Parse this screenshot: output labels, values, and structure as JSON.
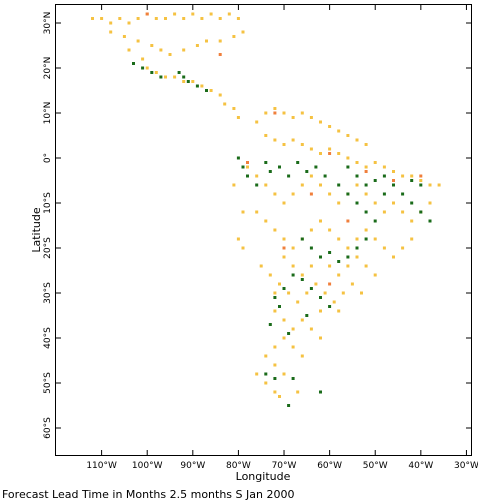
{
  "chart_data": {
    "type": "scatter",
    "caption": "Forecast Lead Time in Months 2.5 months S Jan 2000",
    "xlabel": "Longitude",
    "ylabel": "Latitude",
    "xlim": [
      -120,
      -29
    ],
    "ylim": [
      -66,
      34
    ],
    "x_ticks": [
      {
        "value": -110,
        "label": "110°W"
      },
      {
        "value": -100,
        "label": "100°W"
      },
      {
        "value": -90,
        "label": "90°W"
      },
      {
        "value": -80,
        "label": "80°W"
      },
      {
        "value": -70,
        "label": "70°W"
      },
      {
        "value": -60,
        "label": "60°W"
      },
      {
        "value": -50,
        "label": "50°W"
      },
      {
        "value": -40,
        "label": "40°W"
      },
      {
        "value": -30,
        "label": "30°W"
      }
    ],
    "y_ticks": [
      {
        "value": 30,
        "label": "30°N"
      },
      {
        "value": 20,
        "label": "20°N"
      },
      {
        "value": 10,
        "label": "10°N"
      },
      {
        "value": 0,
        "label": "0°"
      },
      {
        "value": -10,
        "label": "10°S"
      },
      {
        "value": -20,
        "label": "20°S"
      },
      {
        "value": -30,
        "label": "30°S"
      },
      {
        "value": -40,
        "label": "40°S"
      },
      {
        "value": -50,
        "label": "50°S"
      },
      {
        "value": -60,
        "label": "60°S"
      }
    ],
    "series": [
      {
        "color": "#f5c242",
        "points": [
          [
            -112,
            31
          ],
          [
            -110,
            31
          ],
          [
            -108,
            30
          ],
          [
            -106,
            31
          ],
          [
            -104,
            30
          ],
          [
            -102,
            31
          ],
          [
            -100,
            32
          ],
          [
            -98,
            31
          ],
          [
            -96,
            31
          ],
          [
            -94,
            32
          ],
          [
            -92,
            31
          ],
          [
            -90,
            32
          ],
          [
            -88,
            31
          ],
          [
            -86,
            32
          ],
          [
            -84,
            31
          ],
          [
            -82,
            32
          ],
          [
            -80,
            31
          ],
          [
            -108,
            28
          ],
          [
            -105,
            27
          ],
          [
            -102,
            26
          ],
          [
            -99,
            25
          ],
          [
            -97,
            24
          ],
          [
            -95,
            23
          ],
          [
            -92,
            24
          ],
          [
            -89,
            25
          ],
          [
            -87,
            26
          ],
          [
            -84,
            26
          ],
          [
            -81,
            27
          ],
          [
            -79,
            28
          ],
          [
            -104,
            24
          ],
          [
            -101,
            22
          ],
          [
            -100,
            20
          ],
          [
            -98,
            19
          ],
          [
            -96,
            18
          ],
          [
            -94,
            18
          ],
          [
            -92,
            17
          ],
          [
            -90,
            17
          ],
          [
            -88,
            16
          ],
          [
            -86,
            15
          ],
          [
            -84,
            14
          ],
          [
            -83,
            12
          ],
          [
            -81,
            11
          ],
          [
            -80,
            9
          ],
          [
            -76,
            8
          ],
          [
            -74,
            10
          ],
          [
            -72,
            11
          ],
          [
            -70,
            10
          ],
          [
            -68,
            9
          ],
          [
            -66,
            10
          ],
          [
            -64,
            9
          ],
          [
            -62,
            8
          ],
          [
            -60,
            7
          ],
          [
            -58,
            6
          ],
          [
            -56,
            5
          ],
          [
            -54,
            4
          ],
          [
            -52,
            3
          ],
          [
            -74,
            5
          ],
          [
            -72,
            4
          ],
          [
            -70,
            3
          ],
          [
            -68,
            4
          ],
          [
            -66,
            3
          ],
          [
            -64,
            2
          ],
          [
            -62,
            1
          ],
          [
            -60,
            2
          ],
          [
            -58,
            1
          ],
          [
            -56,
            0
          ],
          [
            -54,
            -1
          ],
          [
            -52,
            -2
          ],
          [
            -50,
            -1
          ],
          [
            -48,
            -2
          ],
          [
            -46,
            -3
          ],
          [
            -44,
            -4
          ],
          [
            -42,
            -4
          ],
          [
            -40,
            -5
          ],
          [
            -38,
            -6
          ],
          [
            -36,
            -6
          ],
          [
            -78,
            -2
          ],
          [
            -76,
            -4
          ],
          [
            -74,
            -6
          ],
          [
            -72,
            -8
          ],
          [
            -70,
            -10
          ],
          [
            -68,
            -8
          ],
          [
            -66,
            -6
          ],
          [
            -64,
            -4
          ],
          [
            -62,
            -6
          ],
          [
            -60,
            -8
          ],
          [
            -58,
            -10
          ],
          [
            -56,
            -8
          ],
          [
            -54,
            -6
          ],
          [
            -52,
            -8
          ],
          [
            -50,
            -10
          ],
          [
            -48,
            -12
          ],
          [
            -46,
            -10
          ],
          [
            -44,
            -12
          ],
          [
            -42,
            -14
          ],
          [
            -40,
            -12
          ],
          [
            -38,
            -10
          ],
          [
            -76,
            -12
          ],
          [
            -74,
            -14
          ],
          [
            -72,
            -16
          ],
          [
            -70,
            -18
          ],
          [
            -68,
            -20
          ],
          [
            -66,
            -18
          ],
          [
            -64,
            -16
          ],
          [
            -62,
            -14
          ],
          [
            -60,
            -16
          ],
          [
            -58,
            -18
          ],
          [
            -56,
            -20
          ],
          [
            -54,
            -18
          ],
          [
            -52,
            -16
          ],
          [
            -50,
            -18
          ],
          [
            -48,
            -20
          ],
          [
            -46,
            -22
          ],
          [
            -44,
            -20
          ],
          [
            -42,
            -18
          ],
          [
            -70,
            -22
          ],
          [
            -68,
            -24
          ],
          [
            -66,
            -26
          ],
          [
            -64,
            -24
          ],
          [
            -62,
            -22
          ],
          [
            -60,
            -24
          ],
          [
            -58,
            -26
          ],
          [
            -56,
            -24
          ],
          [
            -54,
            -22
          ],
          [
            -52,
            -24
          ],
          [
            -50,
            -26
          ],
          [
            -71,
            -28
          ],
          [
            -69,
            -30
          ],
          [
            -67,
            -32
          ],
          [
            -65,
            -30
          ],
          [
            -63,
            -28
          ],
          [
            -61,
            -30
          ],
          [
            -59,
            -32
          ],
          [
            -57,
            -30
          ],
          [
            -55,
            -28
          ],
          [
            -53,
            -30
          ],
          [
            -58,
            -34
          ],
          [
            -62,
            -34
          ],
          [
            -72,
            -34
          ],
          [
            -70,
            -36
          ],
          [
            -68,
            -38
          ],
          [
            -66,
            -36
          ],
          [
            -64,
            -38
          ],
          [
            -62,
            -40
          ],
          [
            -70,
            -40
          ],
          [
            -72,
            -42
          ],
          [
            -68,
            -42
          ],
          [
            -66,
            -44
          ],
          [
            -72,
            -46
          ],
          [
            -70,
            -48
          ],
          [
            -74,
            -50
          ],
          [
            -72,
            -52
          ],
          [
            -76,
            -48
          ],
          [
            -74,
            -44
          ],
          [
            -71,
            -53
          ],
          [
            -67,
            -52
          ],
          [
            -80,
            -18
          ],
          [
            -79,
            -12
          ],
          [
            -81,
            -6
          ],
          [
            -79,
            -20
          ],
          [
            -75,
            -24
          ],
          [
            -73,
            -26
          ],
          [
            -72,
            -30
          ]
        ]
      },
      {
        "color": "#1a6b1a",
        "points": [
          [
            -103,
            21
          ],
          [
            -101,
            20
          ],
          [
            -99,
            19
          ],
          [
            -97,
            18
          ],
          [
            -91,
            17
          ],
          [
            -89,
            16
          ],
          [
            -87,
            15
          ],
          [
            -93,
            19
          ],
          [
            -92,
            18
          ],
          [
            -80,
            0
          ],
          [
            -79,
            -2
          ],
          [
            -78,
            -4
          ],
          [
            -76,
            -6
          ],
          [
            -74,
            -1
          ],
          [
            -73,
            -3
          ],
          [
            -71,
            -2
          ],
          [
            -69,
            -4
          ],
          [
            -67,
            -1
          ],
          [
            -65,
            -3
          ],
          [
            -63,
            -2
          ],
          [
            -61,
            -4
          ],
          [
            -58,
            -6
          ],
          [
            -56,
            -8
          ],
          [
            -54,
            -10
          ],
          [
            -52,
            -12
          ],
          [
            -50,
            -14
          ],
          [
            -48,
            -8
          ],
          [
            -46,
            -6
          ],
          [
            -44,
            -8
          ],
          [
            -42,
            -10
          ],
          [
            -40,
            -12
          ],
          [
            -38,
            -14
          ],
          [
            -56,
            -2
          ],
          [
            -54,
            -4
          ],
          [
            -52,
            -6
          ],
          [
            -50,
            -5
          ],
          [
            -48,
            -4
          ],
          [
            -42,
            -5
          ],
          [
            -40,
            -6
          ],
          [
            -66,
            -18
          ],
          [
            -64,
            -20
          ],
          [
            -62,
            -22
          ],
          [
            -60,
            -21
          ],
          [
            -58,
            -23
          ],
          [
            -56,
            -22
          ],
          [
            -54,
            -20
          ],
          [
            -52,
            -18
          ],
          [
            -68,
            -26
          ],
          [
            -66,
            -27
          ],
          [
            -64,
            -29
          ],
          [
            -62,
            -31
          ],
          [
            -60,
            -33
          ],
          [
            -70,
            -29
          ],
          [
            -72,
            -31
          ],
          [
            -71,
            -33
          ],
          [
            -73,
            -37
          ],
          [
            -69,
            -39
          ],
          [
            -65,
            -35
          ],
          [
            -74,
            -48
          ],
          [
            -72,
            -49
          ],
          [
            -68,
            -49
          ],
          [
            -69,
            -55
          ],
          [
            -62,
            -52
          ]
        ]
      },
      {
        "color": "#f07f3c",
        "points": [
          [
            -100,
            32
          ],
          [
            -84,
            23
          ],
          [
            -72,
            10
          ],
          [
            -60,
            1
          ],
          [
            -52,
            -3
          ],
          [
            -46,
            -5
          ],
          [
            -40,
            -4
          ],
          [
            -64,
            -8
          ],
          [
            -56,
            -14
          ],
          [
            -70,
            -20
          ],
          [
            -60,
            -28
          ],
          [
            -78,
            -1
          ]
        ]
      }
    ]
  }
}
